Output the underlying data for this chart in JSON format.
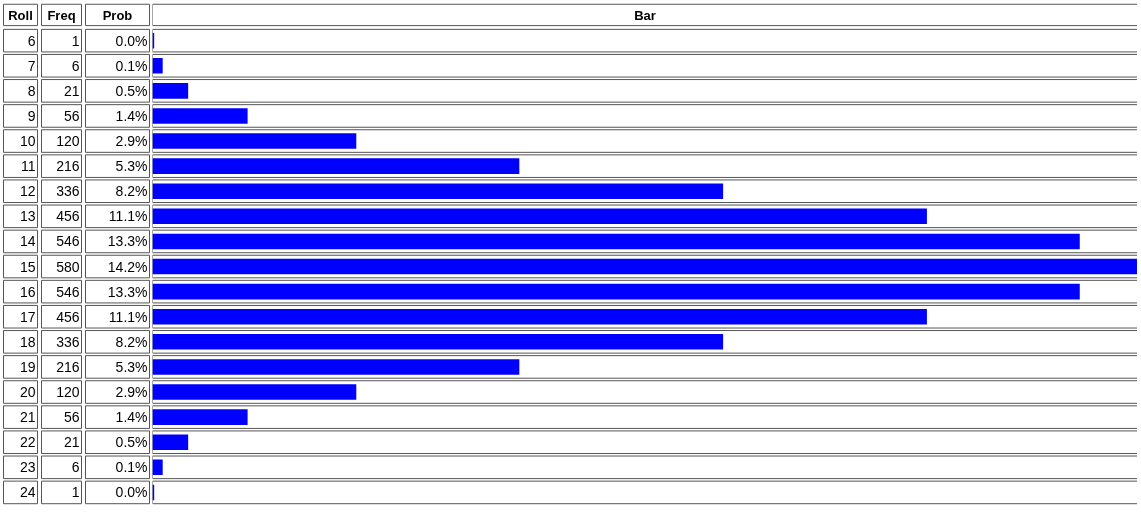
{
  "chart_data": {
    "type": "bar",
    "orientation": "horizontal",
    "ylabel": "Roll",
    "xlabel": "Freq",
    "annotations": [
      "Prob",
      "Bar",
      "0.0%",
      "0.1%",
      "0.5%",
      "1.4%",
      "2.9%",
      "5.3%",
      "8.2%",
      "11.1%",
      "13.3%",
      "14.2%",
      "13.3%",
      "11.1%",
      "8.2%",
      "5.3%",
      "2.9%",
      "1.4%",
      "0.5%",
      "0.1%",
      "0.0%"
    ],
    "categories": [
      "6",
      "7",
      "8",
      "9",
      "10",
      "11",
      "12",
      "13",
      "14",
      "15",
      "16",
      "17",
      "18",
      "19",
      "20",
      "21",
      "22",
      "23",
      "24"
    ],
    "values": [
      1,
      6,
      21,
      56,
      120,
      216,
      336,
      456,
      546,
      580,
      546,
      456,
      336,
      216,
      120,
      56,
      21,
      6,
      1
    ],
    "color": "#0000ff",
    "data_labels": true,
    "tick_labels": false
  }
}
